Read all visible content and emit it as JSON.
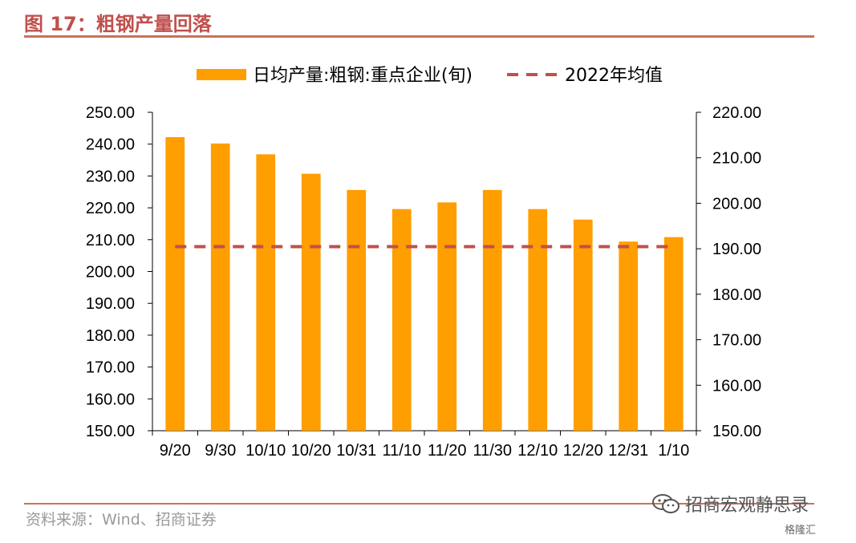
{
  "title": "图 17：粗钢产量回落",
  "source": "资料来源：Wind、招商证券",
  "watermark": "招商宏观静思录",
  "logo": "格隆汇",
  "colors": {
    "bar": "#ff9e00",
    "avg_line": "#c0504d",
    "title": "#c0504d",
    "axis": "#000000"
  },
  "chart_data": {
    "type": "bar",
    "categories": [
      "9/20",
      "9/30",
      "10/10",
      "10/20",
      "10/31",
      "11/10",
      "11/20",
      "11/30",
      "12/10",
      "12/20",
      "12/31",
      "1/10"
    ],
    "x_tick_labels": [
      "9/20",
      "9/30",
      "10/10",
      "10/20",
      "10/31",
      "11/10",
      "11/20",
      "11/30",
      "12/10",
      "12/20",
      "12/31",
      "1/10"
    ],
    "series": [
      {
        "name": "日均产量:粗钢:重点企业(旬)",
        "kind": "bar",
        "axis": "left",
        "values": [
          242.2,
          240.2,
          236.8,
          230.7,
          225.6,
          219.6,
          221.7,
          225.6,
          219.6,
          216.3,
          209.4,
          210.8
        ]
      },
      {
        "name": "2022年均值",
        "kind": "dashed-line",
        "axis": "left",
        "value": 207.8
      }
    ],
    "y_left": {
      "min": 150,
      "max": 250,
      "step": 10,
      "tick_labels": [
        "150.00",
        "160.00",
        "170.00",
        "180.00",
        "190.00",
        "200.00",
        "210.00",
        "220.00",
        "230.00",
        "240.00",
        "250.00"
      ]
    },
    "y_right": {
      "min": 150,
      "max": 220,
      "step": 10,
      "tick_labels": [
        "150.00",
        "160.00",
        "170.00",
        "180.00",
        "190.00",
        "200.00",
        "210.00",
        "220.00"
      ]
    },
    "legend_position": "top",
    "grid": false
  }
}
